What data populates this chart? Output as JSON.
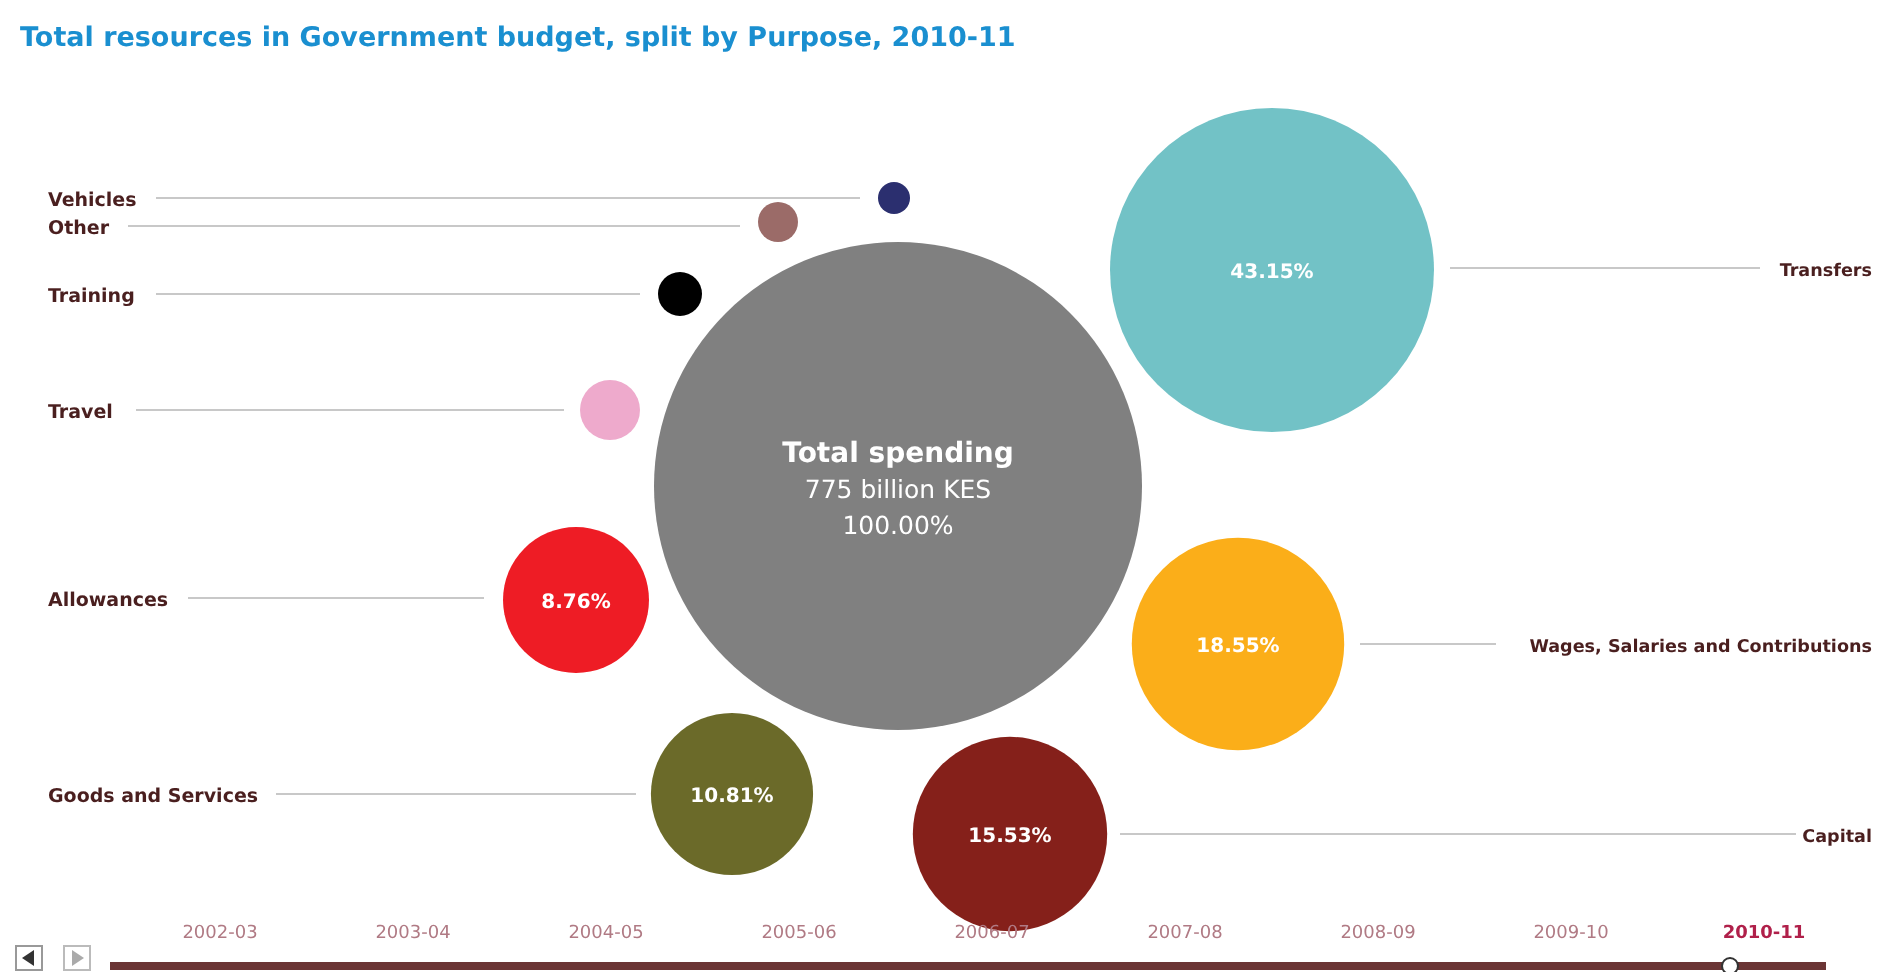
{
  "chart_data": {
    "type": "other",
    "title": "Total resources in Government budget, split by Purpose, 2010-11",
    "categories": [
      "Vehicles",
      "Other",
      "Training",
      "Travel",
      "Allowances",
      "Goods and Services",
      "Capital",
      "Wages, Salaries and Contributions",
      "Transfers"
    ],
    "values": [
      null,
      null,
      null,
      null,
      8.76,
      10.81,
      15.53,
      18.55,
      43.15
    ],
    "colors": [
      "#2b2f6f",
      "#9b6b68",
      "#000000",
      "#eeaacc",
      "#ee1c25",
      "#6b6a29",
      "#85201a",
      "#fbae19",
      "#72c2c6"
    ],
    "value_labels": [
      null,
      null,
      null,
      null,
      "8.76%",
      "10.81%",
      "15.53%",
      "18.55%",
      "43.15%"
    ],
    "annotations": [
      "Total spending",
      "775 billion KES",
      "100.00%",
      "2002-03",
      "2003-04",
      "2004-05",
      "2005-06",
      "2006-07",
      "2007-08",
      "2008-09",
      "2009-10",
      "2010-11"
    ]
  }
}
